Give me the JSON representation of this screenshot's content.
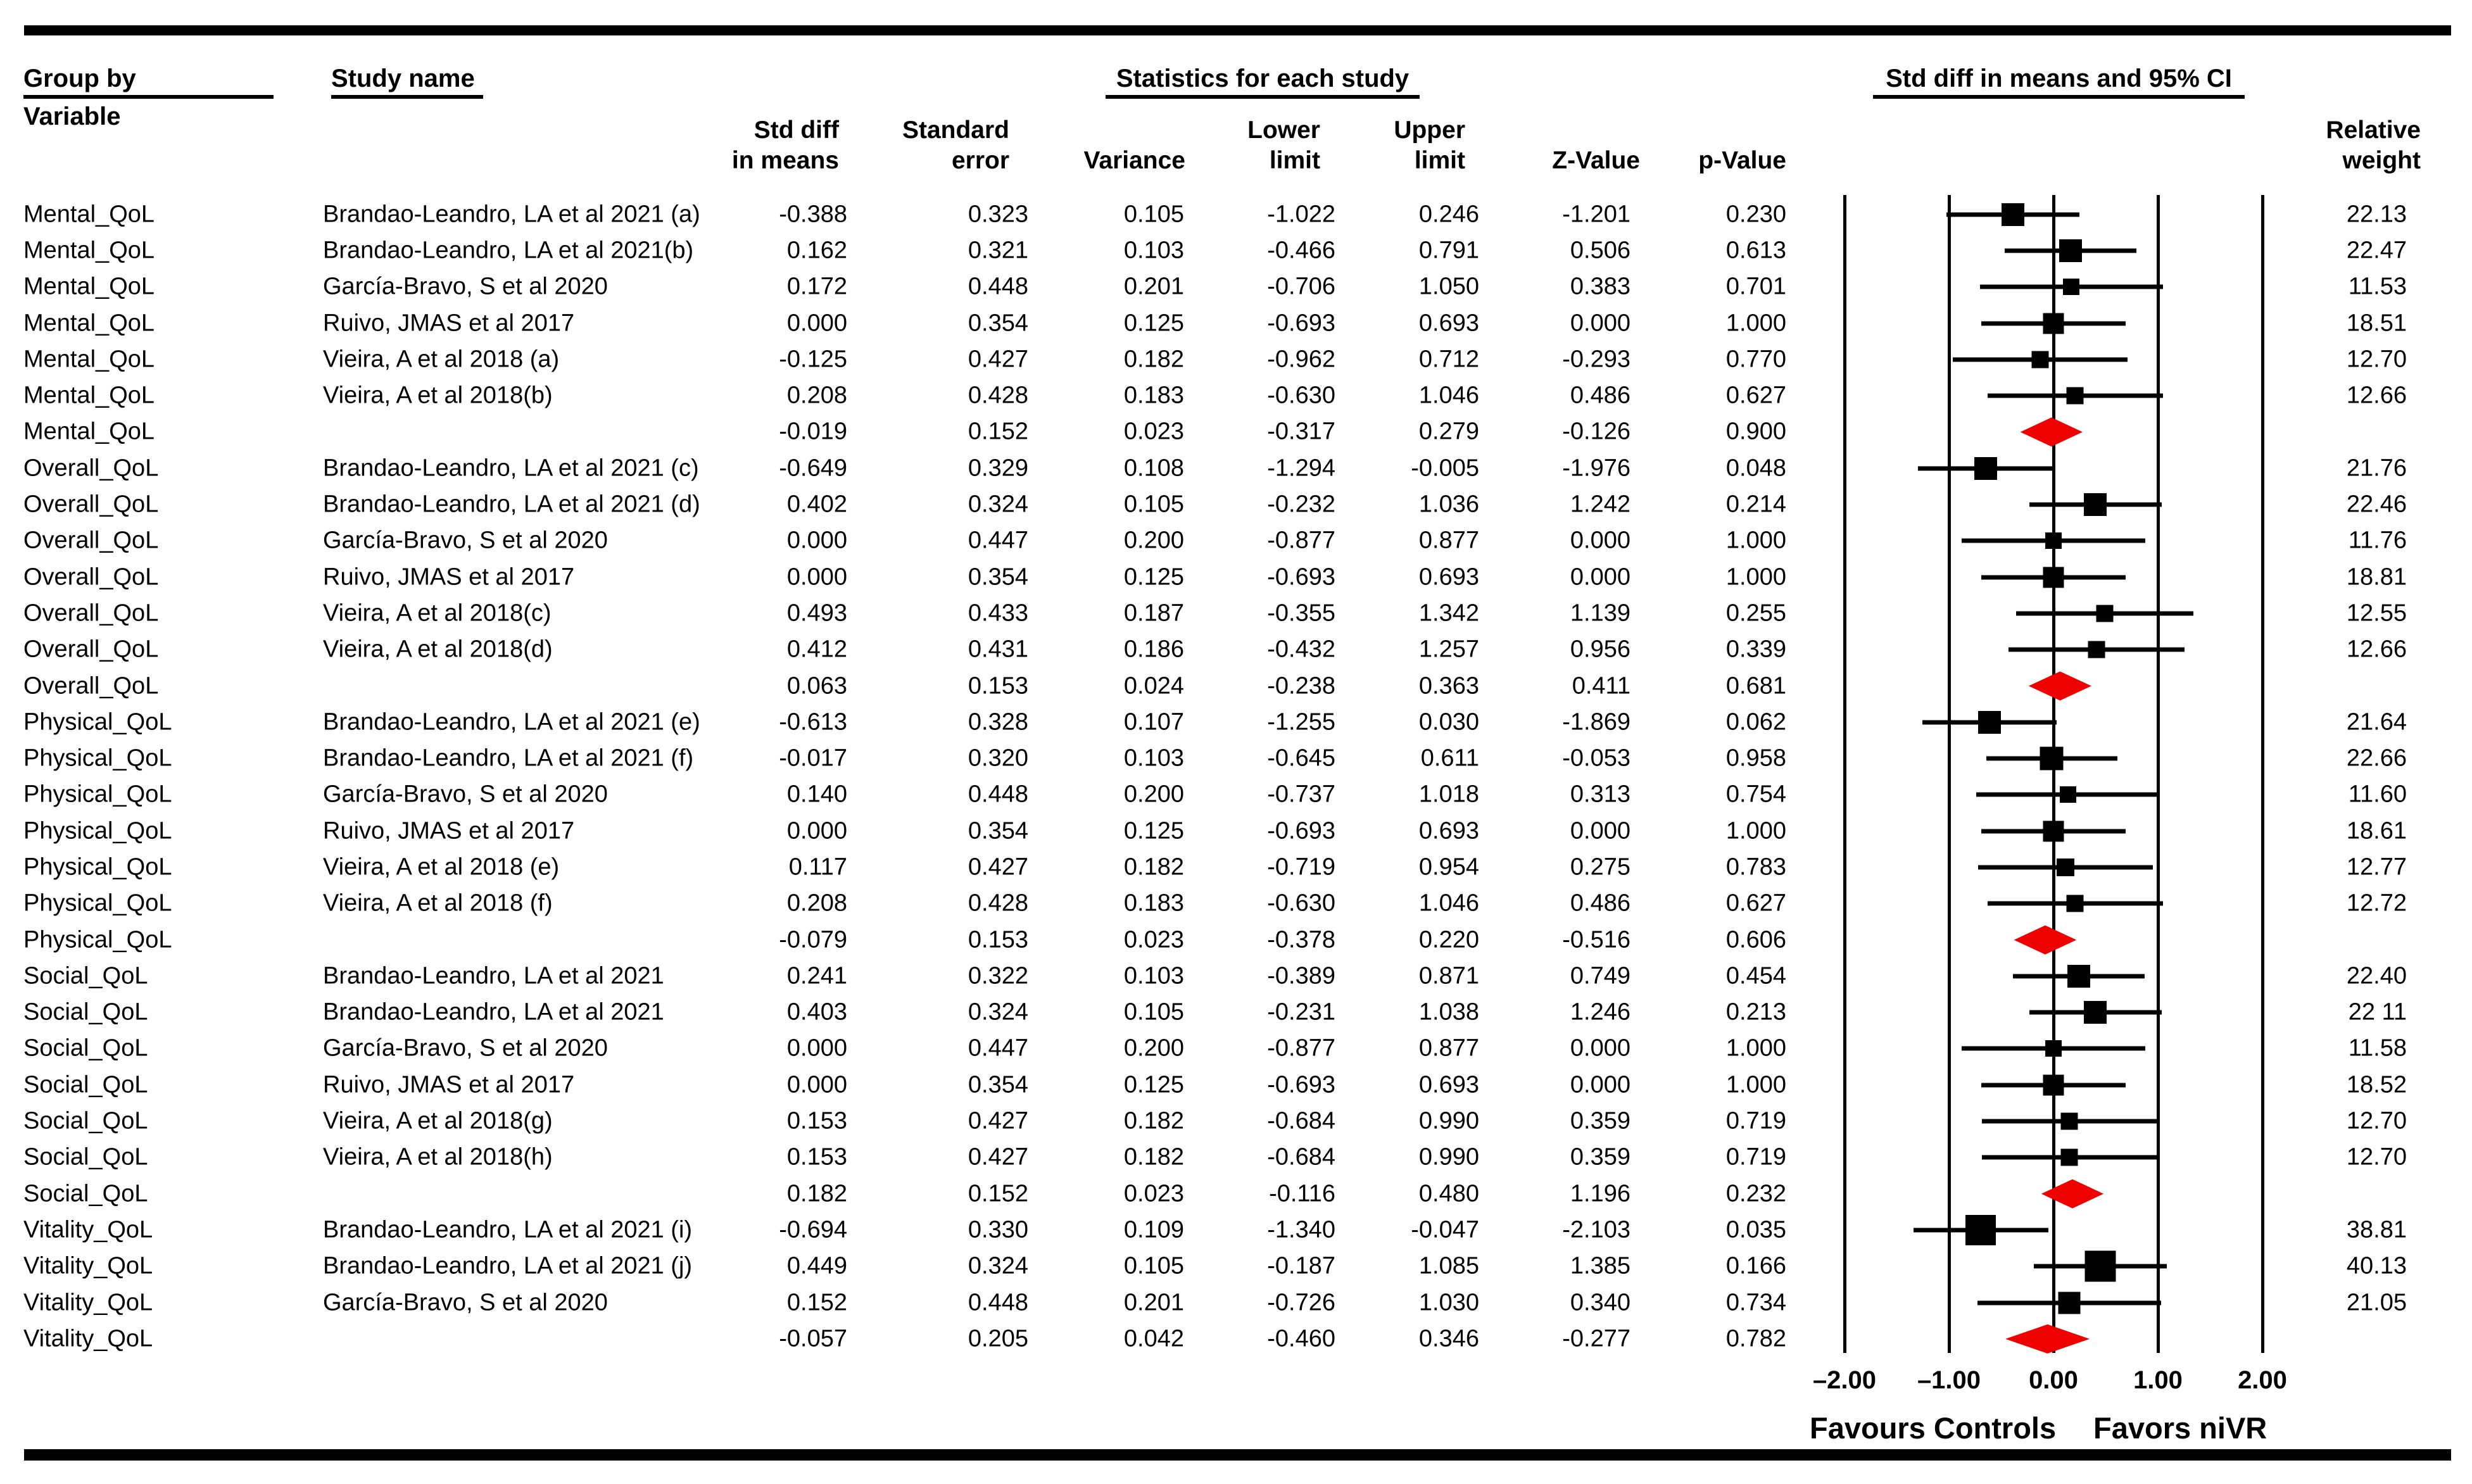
{
  "header": {
    "col1_title": "Group by",
    "col1_subtitle": "Variable",
    "col2_title": "Study name",
    "stats_title": "Statistics for each study",
    "plot_title": "Std diff in means and 95% CI",
    "columns": {
      "std_diff": "Std diff\nin means",
      "std_err": "Standard\nerror",
      "variance": "Variance",
      "lower": "Lower\nlimit",
      "upper": "Upper\nlimit",
      "z": "Z-Value",
      "p": "p-Value",
      "weight": "Relative\nweight"
    }
  },
  "axis": {
    "min": -2,
    "max": 2,
    "tick_values": [
      -2,
      -1,
      0,
      1,
      2
    ],
    "tick_labels": [
      "–2.00",
      "–1.00",
      "0.00",
      "1.00",
      "2.00"
    ],
    "left_label": "Favours Controls",
    "right_label": "Favors niVR"
  },
  "colors": {
    "marker": "#000000",
    "diamond": "#ee0000",
    "rule": "#000000"
  },
  "chart_data": {
    "type": "forest",
    "xlabel_left": "Favours Controls",
    "xlabel_right": "Favors niVR",
    "xlim": [
      -2,
      2
    ],
    "rows": [
      {
        "kind": "study",
        "group": "Mental_QoL",
        "study": "Brandao-Leandro, LA et al 2021 (a)",
        "cells": [
          "-0.388",
          "0.323",
          "0.105",
          "-1.022",
          "0.246",
          "-1.201",
          "0.230"
        ],
        "weight": "22.13",
        "mean": -0.388,
        "lower": -1.022,
        "upper": 0.246,
        "w": 22.13
      },
      {
        "kind": "study",
        "group": "Mental_QoL",
        "study": "Brandao-Leandro, LA et al 2021(b)",
        "cells": [
          "0.162",
          "0.321",
          "0.103",
          "-0.466",
          "0.791",
          "0.506",
          "0.613"
        ],
        "weight": "22.47",
        "mean": 0.162,
        "lower": -0.466,
        "upper": 0.791,
        "w": 22.47
      },
      {
        "kind": "study",
        "group": "Mental_QoL",
        "study": "García-Bravo, S et al 2020",
        "cells": [
          "0.172",
          "0.448",
          "0.201",
          "-0.706",
          "1.050",
          "0.383",
          "0.701"
        ],
        "weight": "11.53",
        "mean": 0.172,
        "lower": -0.706,
        "upper": 1.05,
        "w": 11.53
      },
      {
        "kind": "study",
        "group": "Mental_QoL",
        "study": "Ruivo, JMAS et al 2017",
        "cells": [
          "0.000",
          "0.354",
          "0.125",
          "-0.693",
          "0.693",
          "0.000",
          "1.000"
        ],
        "weight": "18.51",
        "mean": 0.0,
        "lower": -0.693,
        "upper": 0.693,
        "w": 18.51
      },
      {
        "kind": "study",
        "group": "Mental_QoL",
        "study": "Vieira, A et al 2018 (a)",
        "cells": [
          "-0.125",
          "0.427",
          "0.182",
          "-0.962",
          "0.712",
          "-0.293",
          "0.770"
        ],
        "weight": "12.70",
        "mean": -0.125,
        "lower": -0.962,
        "upper": 0.712,
        "w": 12.7
      },
      {
        "kind": "study",
        "group": "Mental_QoL",
        "study": "Vieira, A et al 2018(b)",
        "cells": [
          "0.208",
          "0.428",
          "0.183",
          "-0.630",
          "1.046",
          "0.486",
          "0.627"
        ],
        "weight": "12.66",
        "mean": 0.208,
        "lower": -0.63,
        "upper": 1.046,
        "w": 12.66
      },
      {
        "kind": "summary",
        "group": "Mental_QoL",
        "study": "",
        "cells": [
          "-0.019",
          "0.152",
          "0.023",
          "-0.317",
          "0.279",
          "-0.126",
          "0.900"
        ],
        "weight": "",
        "mean": -0.019,
        "lower": -0.317,
        "upper": 0.279,
        "w": null
      },
      {
        "kind": "study",
        "group": "Overall_QoL",
        "study": "Brandao-Leandro, LA et al 2021 (c)",
        "cells": [
          "-0.649",
          "0.329",
          "0.108",
          "-1.294",
          "-0.005",
          "-1.976",
          "0.048"
        ],
        "weight": "21.76",
        "mean": -0.649,
        "lower": -1.294,
        "upper": -0.005,
        "w": 21.76
      },
      {
        "kind": "study",
        "group": "Overall_QoL",
        "study": "Brandao-Leandro, LA et al 2021 (d)",
        "cells": [
          "0.402",
          "0.324",
          "0.105",
          "-0.232",
          "1.036",
          "1.242",
          "0.214"
        ],
        "weight": "22.46",
        "mean": 0.402,
        "lower": -0.232,
        "upper": 1.036,
        "w": 22.46
      },
      {
        "kind": "study",
        "group": "Overall_QoL",
        "study": "García-Bravo, S et al 2020",
        "cells": [
          "0.000",
          "0.447",
          "0.200",
          "-0.877",
          "0.877",
          "0.000",
          "1.000"
        ],
        "weight": "11.76",
        "mean": 0.0,
        "lower": -0.877,
        "upper": 0.877,
        "w": 11.76
      },
      {
        "kind": "study",
        "group": "Overall_QoL",
        "study": "Ruivo, JMAS et al 2017",
        "cells": [
          "0.000",
          "0.354",
          "0.125",
          "-0.693",
          "0.693",
          "0.000",
          "1.000"
        ],
        "weight": "18.81",
        "mean": 0.0,
        "lower": -0.693,
        "upper": 0.693,
        "w": 18.81
      },
      {
        "kind": "study",
        "group": "Overall_QoL",
        "study": "Vieira, A et al 2018(c)",
        "cells": [
          "0.493",
          "0.433",
          "0.187",
          "-0.355",
          "1.342",
          "1.139",
          "0.255"
        ],
        "weight": "12.55",
        "mean": 0.493,
        "lower": -0.355,
        "upper": 1.342,
        "w": 12.55
      },
      {
        "kind": "study",
        "group": "Overall_QoL",
        "study": "Vieira, A et al 2018(d)",
        "cells": [
          "0.412",
          "0.431",
          "0.186",
          "-0.432",
          "1.257",
          "0.956",
          "0.339"
        ],
        "weight": "12.66",
        "mean": 0.412,
        "lower": -0.432,
        "upper": 1.257,
        "w": 12.66
      },
      {
        "kind": "summary",
        "group": "Overall_QoL",
        "study": "",
        "cells": [
          "0.063",
          "0.153",
          "0.024",
          "-0.238",
          "0.363",
          "0.411",
          "0.681"
        ],
        "weight": "",
        "mean": 0.063,
        "lower": -0.238,
        "upper": 0.363,
        "w": null
      },
      {
        "kind": "study",
        "group": "Physical_QoL",
        "study": "Brandao-Leandro, LA et al 2021 (e)",
        "cells": [
          "-0.613",
          "0.328",
          "0.107",
          "-1.255",
          "0.030",
          "-1.869",
          "0.062"
        ],
        "weight": "21.64",
        "mean": -0.613,
        "lower": -1.255,
        "upper": 0.03,
        "w": 21.64
      },
      {
        "kind": "study",
        "group": "Physical_QoL",
        "study": "Brandao-Leandro, LA et al 2021 (f)",
        "cells": [
          "-0.017",
          "0.320",
          "0.103",
          "-0.645",
          "0.611",
          "-0.053",
          "0.958"
        ],
        "weight": "22.66",
        "mean": -0.017,
        "lower": -0.645,
        "upper": 0.611,
        "w": 22.66
      },
      {
        "kind": "study",
        "group": "Physical_QoL",
        "study": "García-Bravo, S et al 2020",
        "cells": [
          "0.140",
          "0.448",
          "0.200",
          "-0.737",
          "1.018",
          "0.313",
          "0.754"
        ],
        "weight": "11.60",
        "mean": 0.14,
        "lower": -0.737,
        "upper": 1.018,
        "w": 11.6
      },
      {
        "kind": "study",
        "group": "Physical_QoL",
        "study": "Ruivo, JMAS et al 2017",
        "cells": [
          "0.000",
          "0.354",
          "0.125",
          "-0.693",
          "0.693",
          "0.000",
          "1.000"
        ],
        "weight": "18.61",
        "mean": 0.0,
        "lower": -0.693,
        "upper": 0.693,
        "w": 18.61
      },
      {
        "kind": "study",
        "group": "Physical_QoL",
        "study": "Vieira, A et al 2018 (e)",
        "cells": [
          "0.117",
          "0.427",
          "0.182",
          "-0.719",
          "0.954",
          "0.275",
          "0.783"
        ],
        "weight": "12.77",
        "mean": 0.117,
        "lower": -0.719,
        "upper": 0.954,
        "w": 12.77
      },
      {
        "kind": "study",
        "group": "Physical_QoL",
        "study": "Vieira, A et al 2018 (f)",
        "cells": [
          "0.208",
          "0.428",
          "0.183",
          "-0.630",
          "1.046",
          "0.486",
          "0.627"
        ],
        "weight": "12.72",
        "mean": 0.208,
        "lower": -0.63,
        "upper": 1.046,
        "w": 12.72
      },
      {
        "kind": "summary",
        "group": "Physical_QoL",
        "study": "",
        "cells": [
          "-0.079",
          "0.153",
          "0.023",
          "-0.378",
          "0.220",
          "-0.516",
          "0.606"
        ],
        "weight": "",
        "mean": -0.079,
        "lower": -0.378,
        "upper": 0.22,
        "w": null
      },
      {
        "kind": "study",
        "group": "Social_QoL",
        "study": "Brandao-Leandro, LA et al 2021",
        "cells": [
          "0.241",
          "0.322",
          "0.103",
          "-0.389",
          "0.871",
          "0.749",
          "0.454"
        ],
        "weight": "22.40",
        "mean": 0.241,
        "lower": -0.389,
        "upper": 0.871,
        "w": 22.4
      },
      {
        "kind": "study",
        "group": "Social_QoL",
        "study": "Brandao-Leandro, LA et al 2021",
        "cells": [
          "0.403",
          "0.324",
          "0.105",
          "-0.231",
          "1.038",
          "1.246",
          "0.213"
        ],
        "weight": "22 11",
        "mean": 0.403,
        "lower": -0.231,
        "upper": 1.038,
        "w": 22.11
      },
      {
        "kind": "study",
        "group": "Social_QoL",
        "study": "García-Bravo, S et al 2020",
        "cells": [
          "0.000",
          "0.447",
          "0.200",
          "-0.877",
          "0.877",
          "0.000",
          "1.000"
        ],
        "weight": "11.58",
        "mean": 0.0,
        "lower": -0.877,
        "upper": 0.877,
        "w": 11.58
      },
      {
        "kind": "study",
        "group": "Social_QoL",
        "study": "Ruivo, JMAS et al 2017",
        "cells": [
          "0.000",
          "0.354",
          "0.125",
          "-0.693",
          "0.693",
          "0.000",
          "1.000"
        ],
        "weight": "18.52",
        "mean": 0.0,
        "lower": -0.693,
        "upper": 0.693,
        "w": 18.52
      },
      {
        "kind": "study",
        "group": "Social_QoL",
        "study": "Vieira, A et al 2018(g)",
        "cells": [
          "0.153",
          "0.427",
          "0.182",
          "-0.684",
          "0.990",
          "0.359",
          "0.719"
        ],
        "weight": "12.70",
        "mean": 0.153,
        "lower": -0.684,
        "upper": 0.99,
        "w": 12.7
      },
      {
        "kind": "study",
        "group": "Social_QoL",
        "study": "Vieira, A et al 2018(h)",
        "cells": [
          "0.153",
          "0.427",
          "0.182",
          "-0.684",
          "0.990",
          "0.359",
          "0.719"
        ],
        "weight": "12.70",
        "mean": 0.153,
        "lower": -0.684,
        "upper": 0.99,
        "w": 12.7
      },
      {
        "kind": "summary",
        "group": "Social_QoL",
        "study": "",
        "cells": [
          "0.182",
          "0.152",
          "0.023",
          "-0.116",
          "0.480",
          "1.196",
          "0.232"
        ],
        "weight": "",
        "mean": 0.182,
        "lower": -0.116,
        "upper": 0.48,
        "w": null
      },
      {
        "kind": "study",
        "group": "Vitality_QoL",
        "study": "Brandao-Leandro, LA et al 2021 (i)",
        "cells": [
          "-0.694",
          "0.330",
          "0.109",
          "-1.340",
          "-0.047",
          "-2.103",
          "0.035"
        ],
        "weight": "38.81",
        "mean": -0.694,
        "lower": -1.34,
        "upper": -0.047,
        "w": 38.81
      },
      {
        "kind": "study",
        "group": "Vitality_QoL",
        "study": "Brandao-Leandro, LA et al 2021 (j)",
        "cells": [
          "0.449",
          "0.324",
          "0.105",
          "-0.187",
          "1.085",
          "1.385",
          "0.166"
        ],
        "weight": "40.13",
        "mean": 0.449,
        "lower": -0.187,
        "upper": 1.085,
        "w": 40.13
      },
      {
        "kind": "study",
        "group": "Vitality_QoL",
        "study": "García-Bravo, S et al 2020",
        "cells": [
          "0.152",
          "0.448",
          "0.201",
          "-0.726",
          "1.030",
          "0.340",
          "0.734"
        ],
        "weight": "21.05",
        "mean": 0.152,
        "lower": -0.726,
        "upper": 1.03,
        "w": 21.05
      },
      {
        "kind": "summary",
        "group": "Vitality_QoL",
        "study": "",
        "cells": [
          "-0.057",
          "0.205",
          "0.042",
          "-0.460",
          "0.346",
          "-0.277",
          "0.782"
        ],
        "weight": "",
        "mean": -0.057,
        "lower": -0.46,
        "upper": 0.346,
        "w": null
      }
    ]
  }
}
